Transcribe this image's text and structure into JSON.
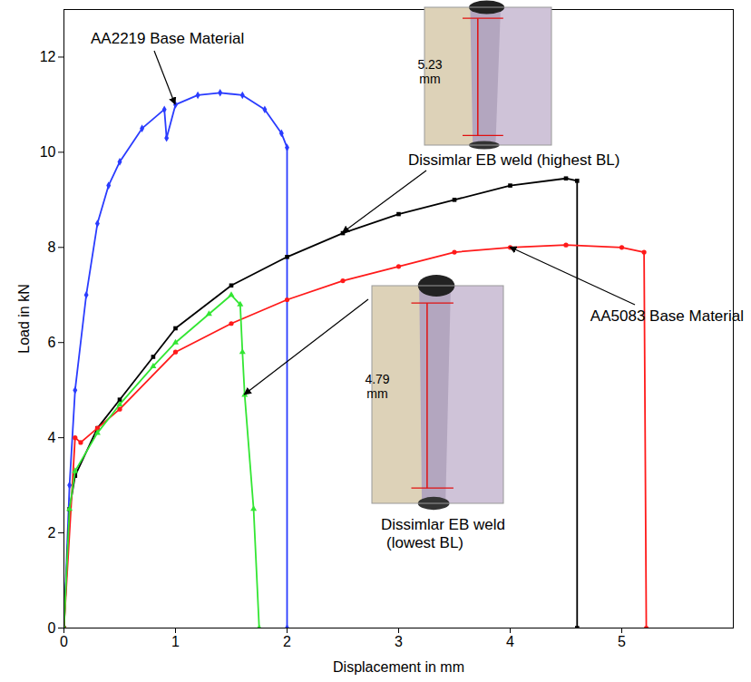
{
  "chart_data": {
    "type": "line",
    "x_label": "Displacement in mm",
    "y_label": "Load in kN",
    "xlim": [
      0,
      6
    ],
    "xticks": [
      0,
      1,
      2,
      3,
      4,
      5
    ],
    "ylim": [
      0,
      13
    ],
    "yticks": [
      0,
      2,
      4,
      6,
      8,
      10,
      12
    ],
    "grid": false,
    "series": [
      {
        "name": "AA2219 Base Material",
        "color": "#2a3cff",
        "marker": "diamond",
        "x": [
          0,
          0.05,
          0.1,
          0.2,
          0.3,
          0.4,
          0.5,
          0.7,
          0.9,
          0.92,
          1.0,
          1.2,
          1.4,
          1.6,
          1.8,
          1.95,
          2.0,
          2.0
        ],
        "values": [
          0,
          3.0,
          5.0,
          7.0,
          8.5,
          9.3,
          9.8,
          10.5,
          10.9,
          10.3,
          11.0,
          11.2,
          11.25,
          11.2,
          10.9,
          10.4,
          10.1,
          0
        ]
      },
      {
        "name": "Dissimlar EB weld (highest BL)",
        "color": "#000000",
        "marker": "square",
        "x": [
          0,
          0.05,
          0.1,
          0.3,
          0.5,
          0.8,
          1.0,
          1.5,
          2.0,
          2.5,
          3.0,
          3.5,
          4.0,
          4.5,
          4.6,
          4.6
        ],
        "values": [
          0,
          2.5,
          3.2,
          4.2,
          4.8,
          5.7,
          6.3,
          7.2,
          7.8,
          8.3,
          8.7,
          9.0,
          9.3,
          9.45,
          9.4,
          0
        ]
      },
      {
        "name": "AA5083 Base Material",
        "color": "#ff1a1a",
        "marker": "circle",
        "x": [
          0,
          0.1,
          0.15,
          0.3,
          0.5,
          1.0,
          1.5,
          2.0,
          2.5,
          3.0,
          3.5,
          4.0,
          4.5,
          5.0,
          5.2,
          5.22
        ],
        "values": [
          0,
          4.0,
          3.9,
          4.2,
          4.6,
          5.8,
          6.4,
          6.9,
          7.3,
          7.6,
          7.9,
          8.0,
          8.05,
          8.0,
          7.9,
          0
        ]
      },
      {
        "name": "Dissimlar EB weld (lowest BL)",
        "color": "#33e633",
        "marker": "triangle",
        "x": [
          0,
          0.05,
          0.1,
          0.3,
          0.5,
          0.8,
          1.0,
          1.3,
          1.5,
          1.58,
          1.6,
          1.62,
          1.7,
          1.75
        ],
        "values": [
          0,
          2.5,
          3.3,
          4.1,
          4.7,
          5.5,
          6.0,
          6.6,
          7.0,
          6.8,
          5.8,
          4.9,
          2.5,
          0
        ]
      }
    ],
    "annotations": [
      {
        "text": "AA2219 Base Material",
        "series": "AA2219 Base Material"
      },
      {
        "text": "Dissimlar EB weld (highest BL)",
        "series": "Dissimlar EB weld (highest BL)"
      },
      {
        "text": "AA5083 Base Material",
        "series": "AA5083 Base Material"
      },
      {
        "text": "Dissimlar EB weld (lowest BL)",
        "series": "Dissimlar EB weld (lowest BL)"
      }
    ],
    "insets": [
      {
        "text": "5.23 mm"
      },
      {
        "text": "4.79 mm"
      }
    ]
  }
}
